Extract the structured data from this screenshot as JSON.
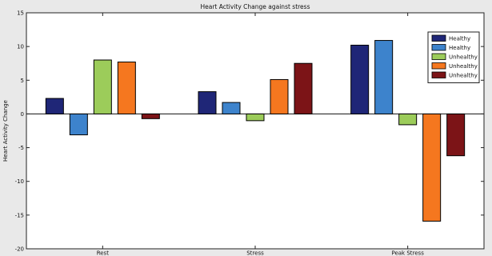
{
  "chart_data": {
    "type": "bar",
    "title": "Heart Activity Change against stress",
    "xlabel": "",
    "ylabel": "Heart Activity Change",
    "categories": [
      "Rest",
      "Stress",
      "Peak Stress"
    ],
    "ylim": [
      -20,
      15
    ],
    "yticks": [
      15,
      10,
      5,
      0,
      -5,
      -10,
      -15,
      -20
    ],
    "grid": false,
    "legend_position": "top-right",
    "series": [
      {
        "name": "Healthy",
        "color": "#1f2677",
        "values": [
          2.3,
          3.3,
          10.2
        ]
      },
      {
        "name": "Healthy",
        "color": "#3d83cc",
        "values": [
          -3.1,
          1.7,
          10.9
        ]
      },
      {
        "name": "Unhealthy",
        "color": "#9ccc5a",
        "values": [
          8.0,
          -1.0,
          -1.6
        ]
      },
      {
        "name": "Unhealthy",
        "color": "#f5771f",
        "values": [
          7.7,
          5.1,
          -15.9
        ]
      },
      {
        "name": "Unhealthy",
        "color": "#7c1417",
        "values": [
          -0.7,
          7.5,
          -6.2
        ]
      }
    ]
  }
}
